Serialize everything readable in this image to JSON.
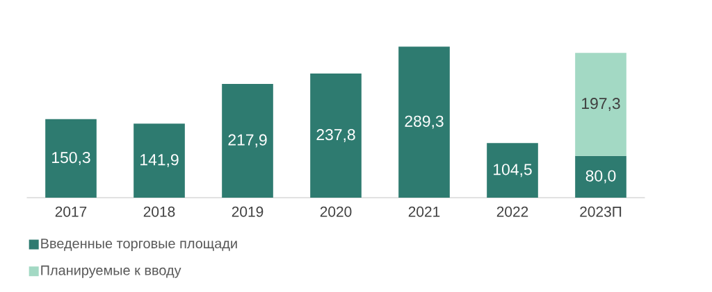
{
  "chart_data": {
    "type": "bar",
    "stacked": true,
    "legend": "bottom left",
    "categories": [
      "2017",
      "2018",
      "2019",
      "2020",
      "2021",
      "2022",
      "2023П"
    ],
    "series": [
      {
        "name": "Введенные торговые площади",
        "color": "#2e7b70",
        "values": [
          150.3,
          141.9,
          217.9,
          237.8,
          289.3,
          104.5,
          80.0
        ],
        "value_labels": [
          "150,3",
          "141,9",
          "217,9",
          "237,8",
          "289,3",
          "104,5",
          "80,0"
        ]
      },
      {
        "name": "Планируемые к вводу",
        "color": "#a3d9c4",
        "values": [
          null,
          null,
          null,
          null,
          null,
          null,
          197.3
        ],
        "value_labels": [
          null,
          null,
          null,
          null,
          null,
          null,
          "197,3"
        ]
      }
    ]
  }
}
